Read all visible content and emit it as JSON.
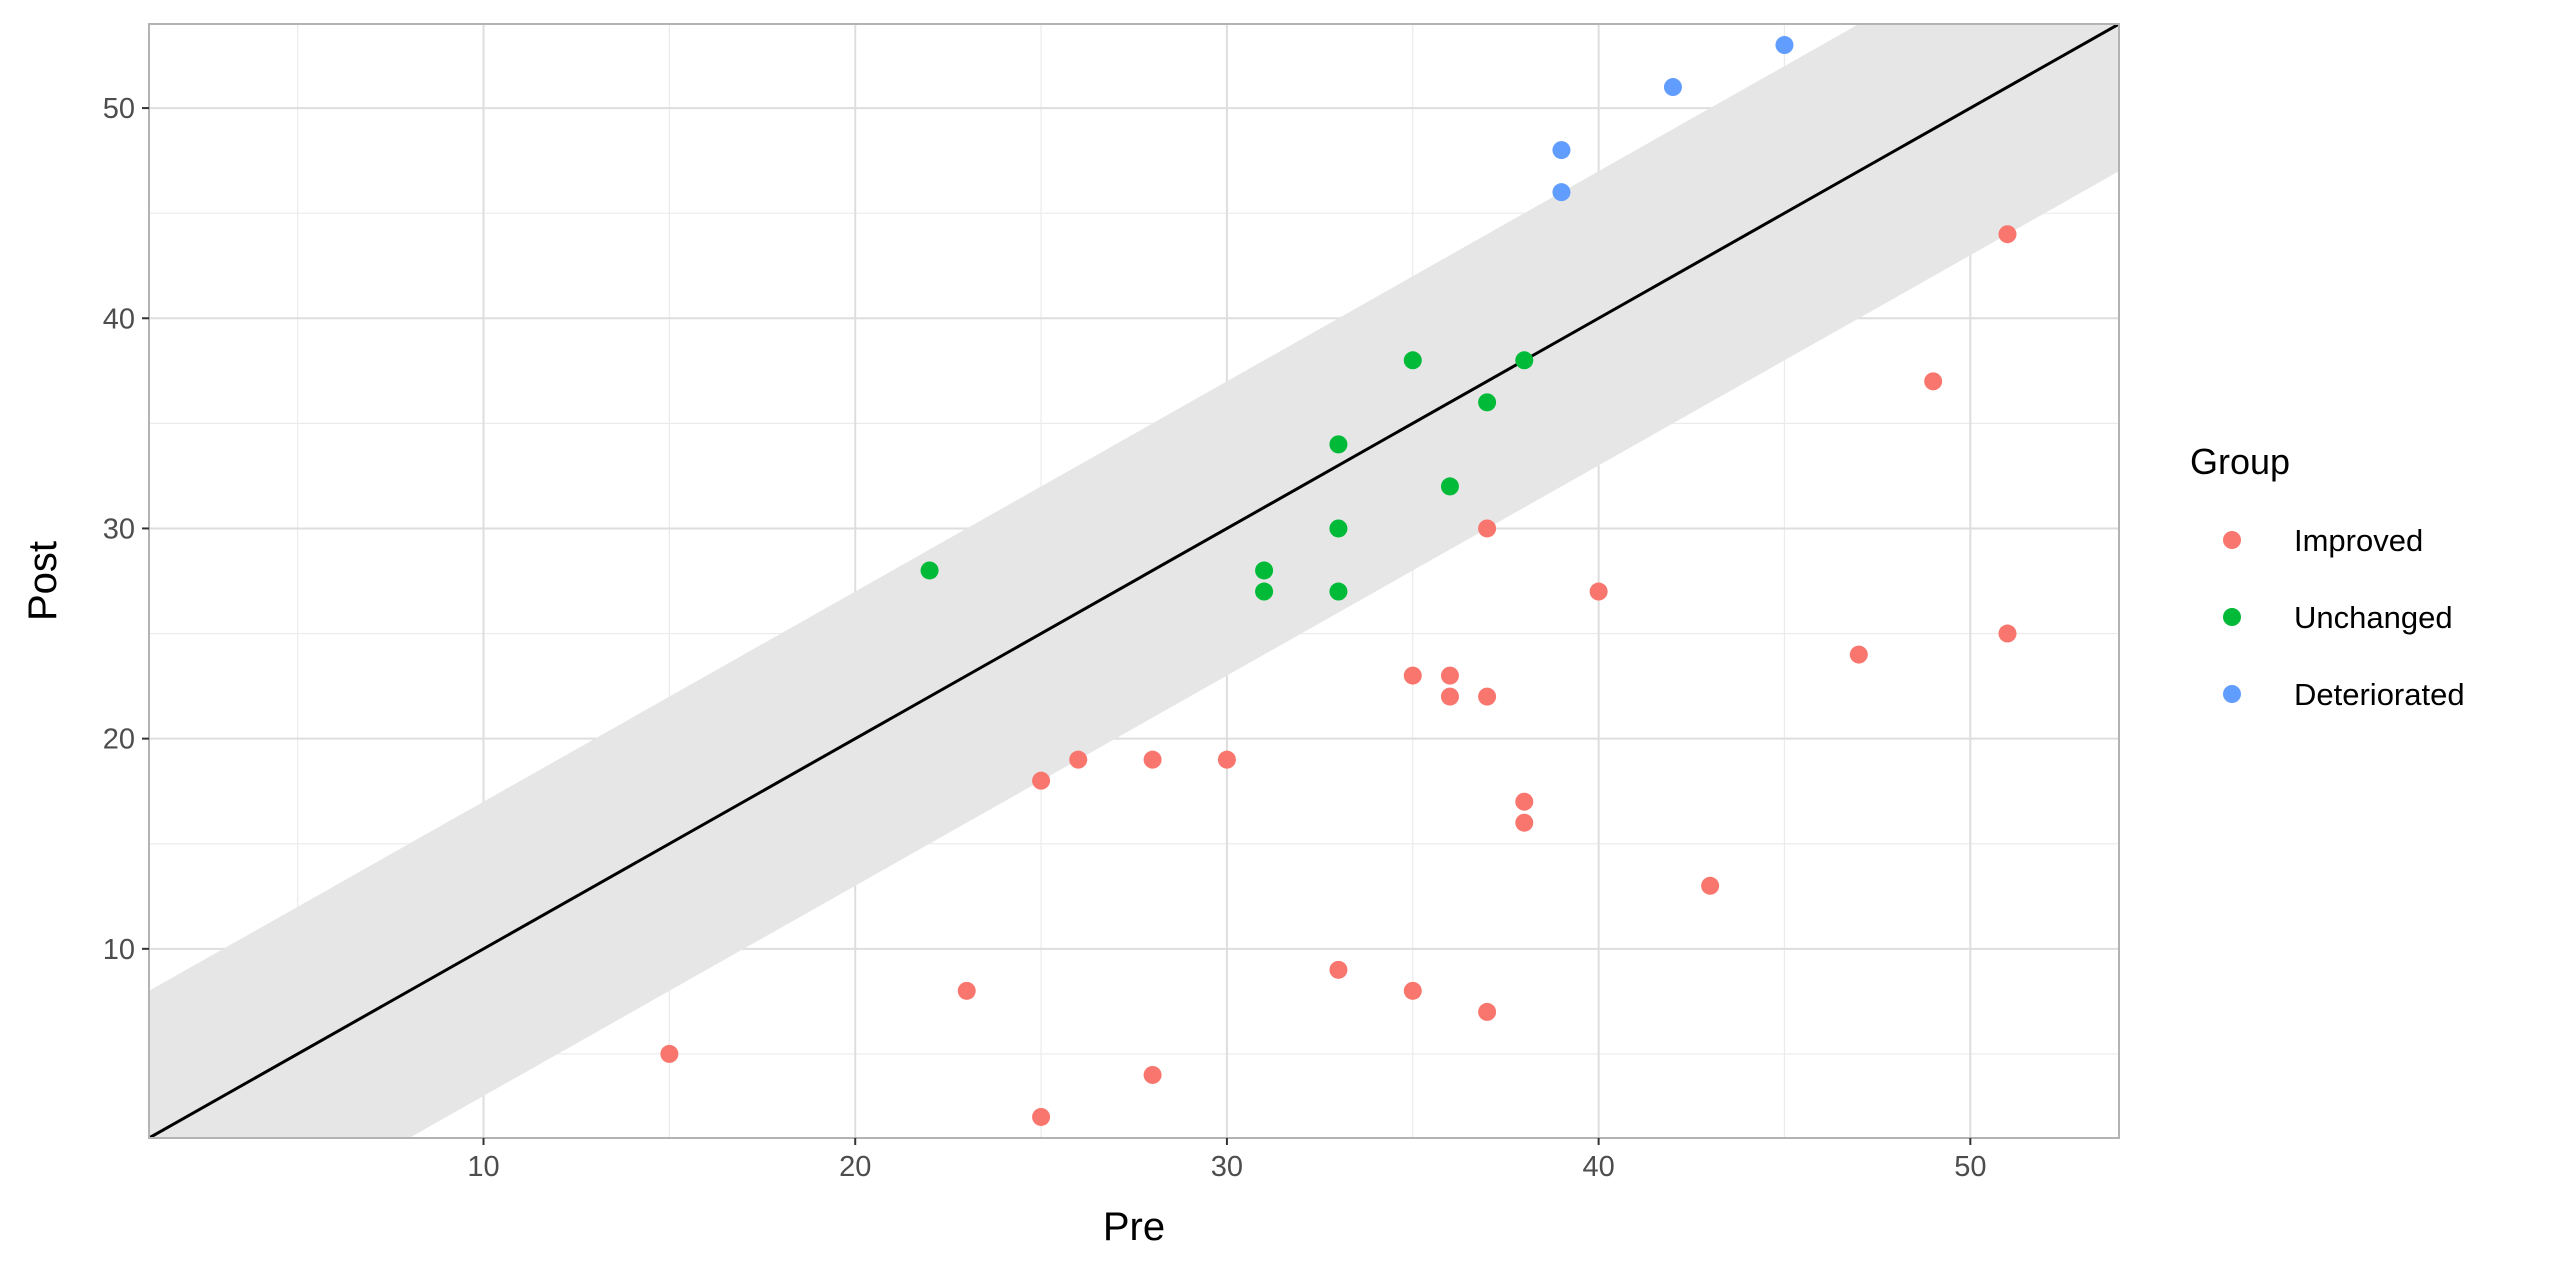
{
  "chart_data": {
    "type": "scatter",
    "title": "",
    "xlabel": "Pre",
    "ylabel": "Post",
    "xlim": [
      1,
      54
    ],
    "ylim": [
      1,
      54
    ],
    "xticks": [
      10,
      20,
      30,
      40,
      50
    ],
    "yticks": [
      10,
      20,
      30,
      40,
      50
    ],
    "grid": true,
    "reference_line": {
      "intercept": 0,
      "slope": 1,
      "color": "#000000"
    },
    "band": {
      "offset": 7,
      "color": "#e6e6e6"
    },
    "legend": {
      "title": "Group",
      "placement": "right"
    },
    "series": [
      {
        "name": "Improved",
        "color": "#F8766D",
        "points": [
          [
            15,
            5
          ],
          [
            23,
            8
          ],
          [
            25,
            2
          ],
          [
            25,
            18
          ],
          [
            26,
            19
          ],
          [
            28,
            19
          ],
          [
            28,
            4
          ],
          [
            30,
            19
          ],
          [
            33,
            9
          ],
          [
            35,
            8
          ],
          [
            35,
            23
          ],
          [
            36,
            23
          ],
          [
            36,
            22
          ],
          [
            37,
            22
          ],
          [
            37,
            30
          ],
          [
            37,
            7
          ],
          [
            38,
            17
          ],
          [
            38,
            16
          ],
          [
            40,
            27
          ],
          [
            43,
            13
          ],
          [
            47,
            24
          ],
          [
            49,
            37
          ],
          [
            51,
            44
          ],
          [
            51,
            25
          ]
        ]
      },
      {
        "name": "Unchanged",
        "color": "#00BA38",
        "points": [
          [
            22,
            28
          ],
          [
            31,
            28
          ],
          [
            31,
            27
          ],
          [
            33,
            34
          ],
          [
            33,
            30
          ],
          [
            33,
            27
          ],
          [
            35,
            38
          ],
          [
            36,
            32
          ],
          [
            37,
            36
          ],
          [
            38,
            38
          ]
        ]
      },
      {
        "name": "Deteriorated",
        "color": "#619CFF",
        "points": [
          [
            39,
            48
          ],
          [
            39,
            46
          ],
          [
            42,
            51
          ],
          [
            45,
            53
          ]
        ]
      }
    ]
  }
}
